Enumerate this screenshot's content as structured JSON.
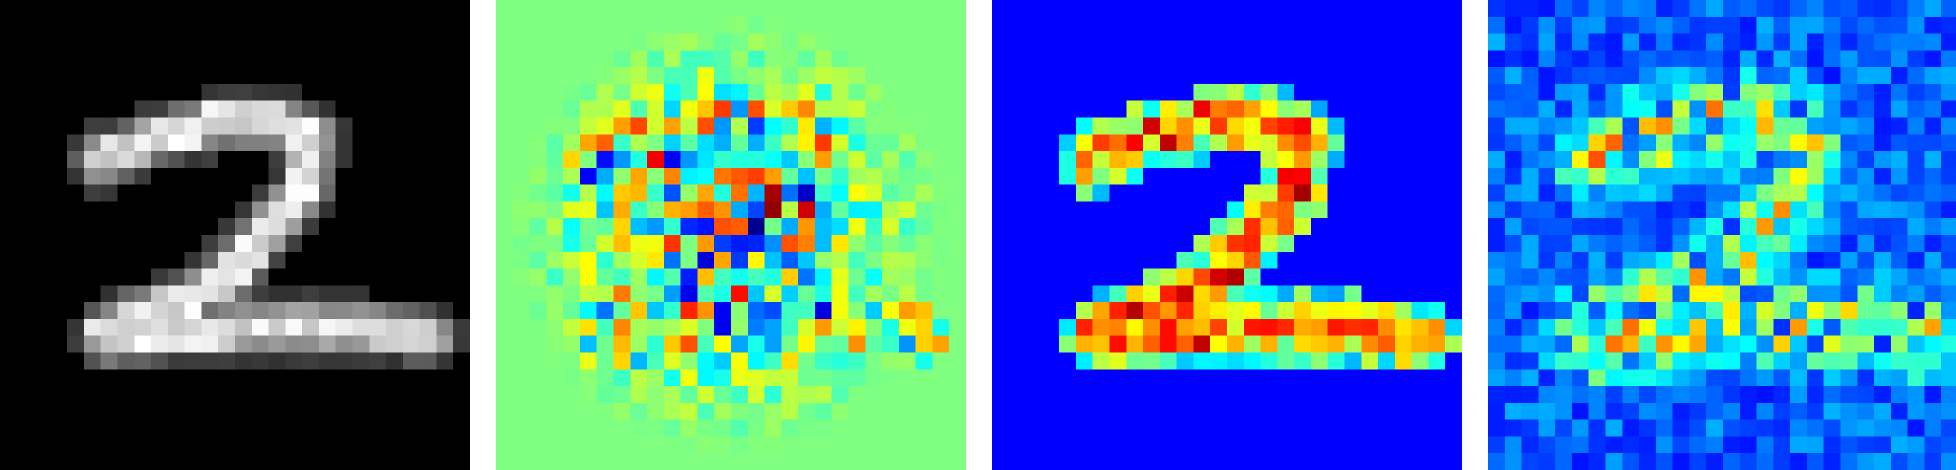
{
  "figure": {
    "grid_size": 28,
    "panels": [
      {
        "id": "input-digit",
        "colormap": "gray",
        "background": "#000000"
      },
      {
        "id": "heatmap-signed",
        "colormap": "jet",
        "background": "#55ffaa"
      },
      {
        "id": "heatmap-positive",
        "colormap": "jet",
        "background": "#000080"
      },
      {
        "id": "heatmap-noisy",
        "colormap": "jet",
        "background": "#00008f"
      }
    ]
  }
}
